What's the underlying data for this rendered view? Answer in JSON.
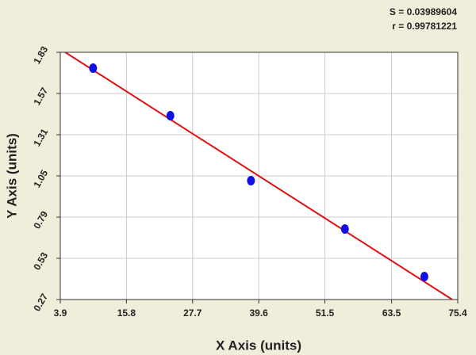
{
  "chart_data": {
    "type": "scatter",
    "annotations": [
      "S = 0.03989604",
      "r = 0.99781221"
    ],
    "x_label": "X Axis (units)",
    "y_label": "Y Axis (units)",
    "series": [
      {
        "color": "#1010e0",
        "x": [
          9.8,
          23.7,
          38.2,
          55.1,
          69.4
        ],
        "values": [
          1.73,
          1.43,
          1.02,
          0.715,
          0.415
        ]
      }
    ],
    "fit_line": {
      "color": "#e01010",
      "x": [
        3.9,
        74.4
      ],
      "y": [
        1.85,
        0.27
      ]
    },
    "xlim": [
      3.9,
      75.4
    ],
    "xticks": [
      3.9,
      15.8,
      27.7,
      39.6,
      51.5,
      63.5,
      75.4
    ],
    "ylim": [
      0.27,
      1.83
    ],
    "yticks": [
      0.27,
      0.53,
      0.79,
      1.05,
      1.31,
      1.57,
      1.83
    ],
    "grid": true
  }
}
